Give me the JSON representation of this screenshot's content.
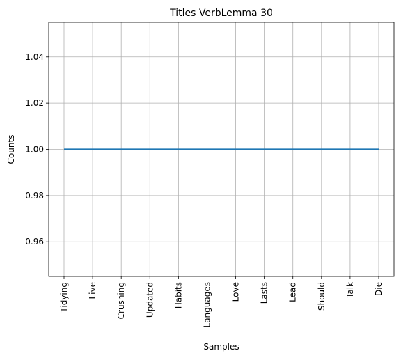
{
  "chart_data": {
    "type": "line",
    "title": "Titles VerbLemma 30",
    "xlabel": "Samples",
    "ylabel": "Counts",
    "categories": [
      "Tidying",
      "Live",
      "Crushing",
      "Updated",
      "Habits",
      "Languages",
      "Love",
      "Lasts",
      "Lead",
      "Should",
      "Talk",
      "Die"
    ],
    "series": [
      {
        "values": [
          1,
          1,
          1,
          1,
          1,
          1,
          1,
          1,
          1,
          1,
          1,
          1
        ]
      }
    ],
    "ylim": [
      0.945,
      1.055
    ],
    "yticks": [
      0.96,
      0.98,
      1.0,
      1.02,
      1.04
    ],
    "ytick_labels": [
      "0.96",
      "0.98",
      "1.00",
      "1.02",
      "1.04"
    ],
    "grid": true,
    "line_color": "#1f77b4",
    "grid_color": "#b0b0b0"
  }
}
